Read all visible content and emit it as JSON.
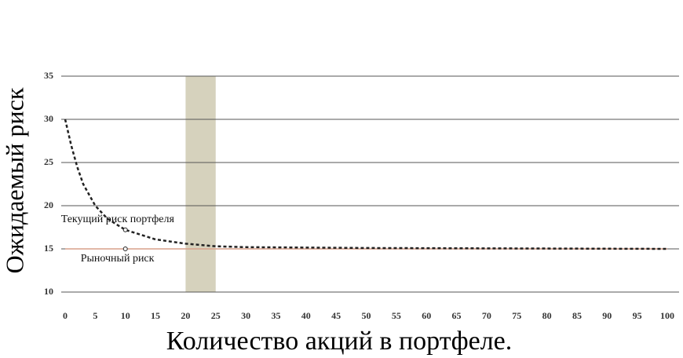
{
  "chart_data": {
    "type": "line",
    "xlabel": "Количество акций в портфеле.",
    "ylabel": "Ожидаемый риск",
    "xlim": [
      0,
      100
    ],
    "ylim": [
      10,
      35
    ],
    "xticks": [
      0,
      5,
      10,
      15,
      20,
      25,
      30,
      35,
      40,
      45,
      50,
      55,
      60,
      65,
      70,
      75,
      80,
      85,
      90,
      95,
      100
    ],
    "yticks": [
      10,
      15,
      20,
      25,
      30,
      35
    ],
    "grid": true,
    "highlight_range": [
      20,
      25
    ],
    "highlight_color": "#d6d2bd",
    "series": [
      {
        "name": "Текущий риск портфеля",
        "color": "#222222",
        "dashed": true,
        "x": [
          0,
          1,
          2,
          3,
          5,
          7,
          10,
          15,
          20,
          25,
          30,
          50,
          75,
          100
        ],
        "values": [
          30,
          27,
          24.5,
          22.5,
          20,
          18.5,
          17.2,
          16.1,
          15.6,
          15.3,
          15.2,
          15.1,
          15.05,
          15
        ],
        "marker": {
          "x": 10,
          "y": 17.2
        }
      },
      {
        "name": "Рыночный риск",
        "color": "#d9a08a",
        "dashed": false,
        "x": [
          0,
          100
        ],
        "values": [
          15,
          15
        ],
        "marker": {
          "x": 10,
          "y": 15
        }
      }
    ]
  }
}
